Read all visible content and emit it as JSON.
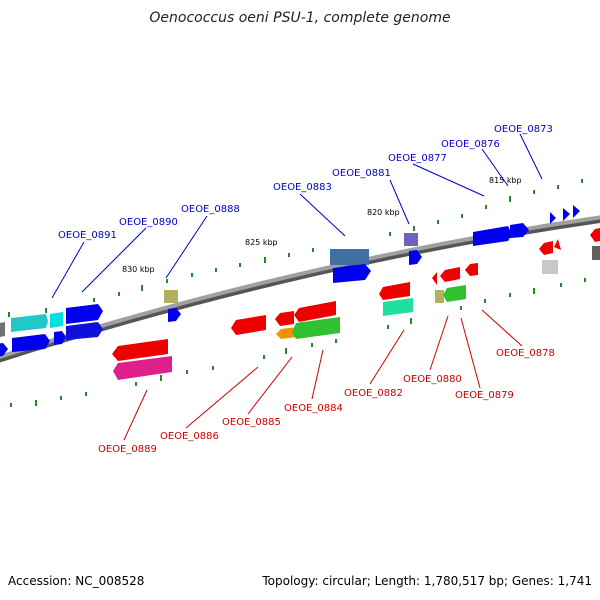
{
  "title": "Oenococcus oeni PSU-1, complete genome",
  "footer": {
    "accession": "Accession: NC_008528",
    "topology": "Topology: circular; Length: 1,780,517 bp; Genes: 1,741"
  },
  "scale_labels": [
    "830 kbp",
    "825 kbp",
    "820 kbp",
    "815 kbp"
  ],
  "colors": {
    "forward_label": "#0000cc",
    "reverse_label": "#cc0000",
    "backbone": "#808080",
    "tick": "#228b22"
  },
  "genes_forward": [
    "OEOE_0891",
    "OEOE_0890",
    "OEOE_0888",
    "OEOE_0883",
    "OEOE_0881",
    "OEOE_0877",
    "OEOE_0876",
    "OEOE_0873"
  ],
  "genes_reverse": [
    "OEOE_0889",
    "OEOE_0886",
    "OEOE_0885",
    "OEOE_0884",
    "OEOE_0882",
    "OEOE_0880",
    "OEOE_0879",
    "OEOE_0878"
  ]
}
